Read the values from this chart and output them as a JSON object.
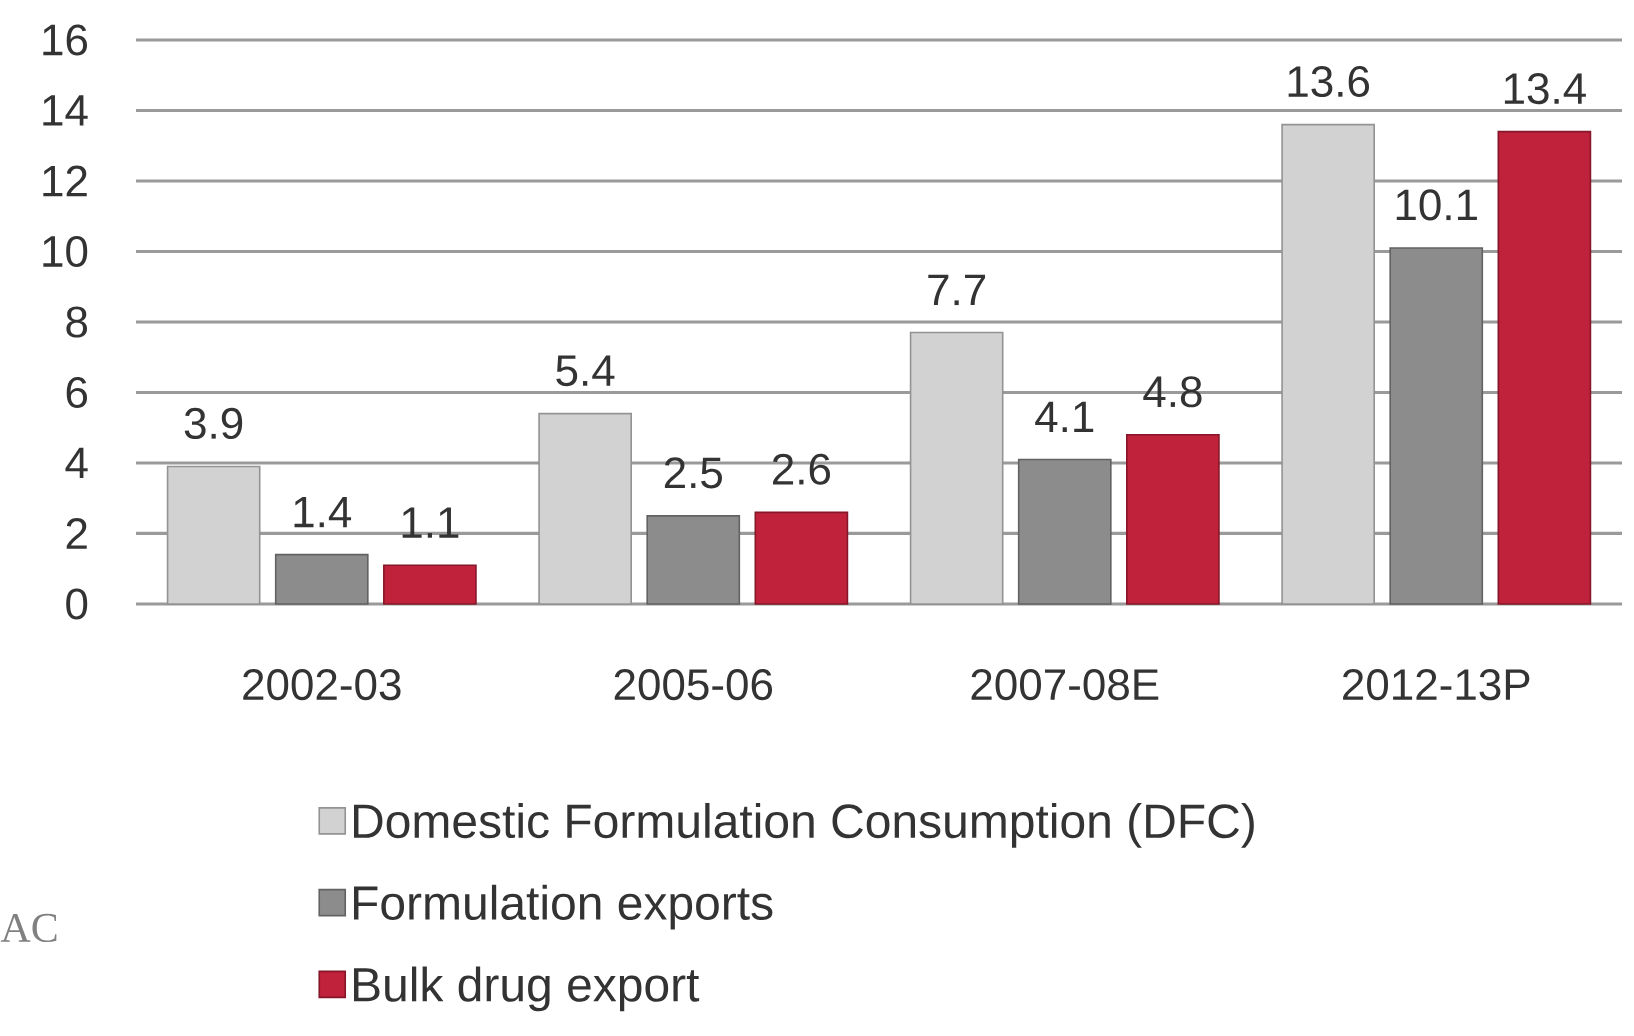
{
  "chart_data": {
    "type": "bar",
    "categories": [
      "2002-03",
      "2005-06",
      "2007-08E",
      "2012-13P"
    ],
    "series": [
      {
        "name": "Domestic Formulation Consumption (DFC)",
        "color": "#d2d2d2",
        "values": [
          3.9,
          5.4,
          7.7,
          13.6
        ]
      },
      {
        "name": "Formulation exports",
        "color": "#8c8c8c",
        "values": [
          1.4,
          2.5,
          4.1,
          10.1
        ]
      },
      {
        "name": "Bulk drug export",
        "color": "#c0213b",
        "values": [
          1.1,
          2.6,
          4.8,
          13.4
        ]
      }
    ],
    "ylim": [
      0,
      16
    ],
    "yticks": [
      0,
      2,
      4,
      6,
      8,
      10,
      12,
      14,
      16
    ],
    "grid": "y",
    "legend": "bottom",
    "data_labels": true,
    "annotations": [
      "AC"
    ]
  }
}
